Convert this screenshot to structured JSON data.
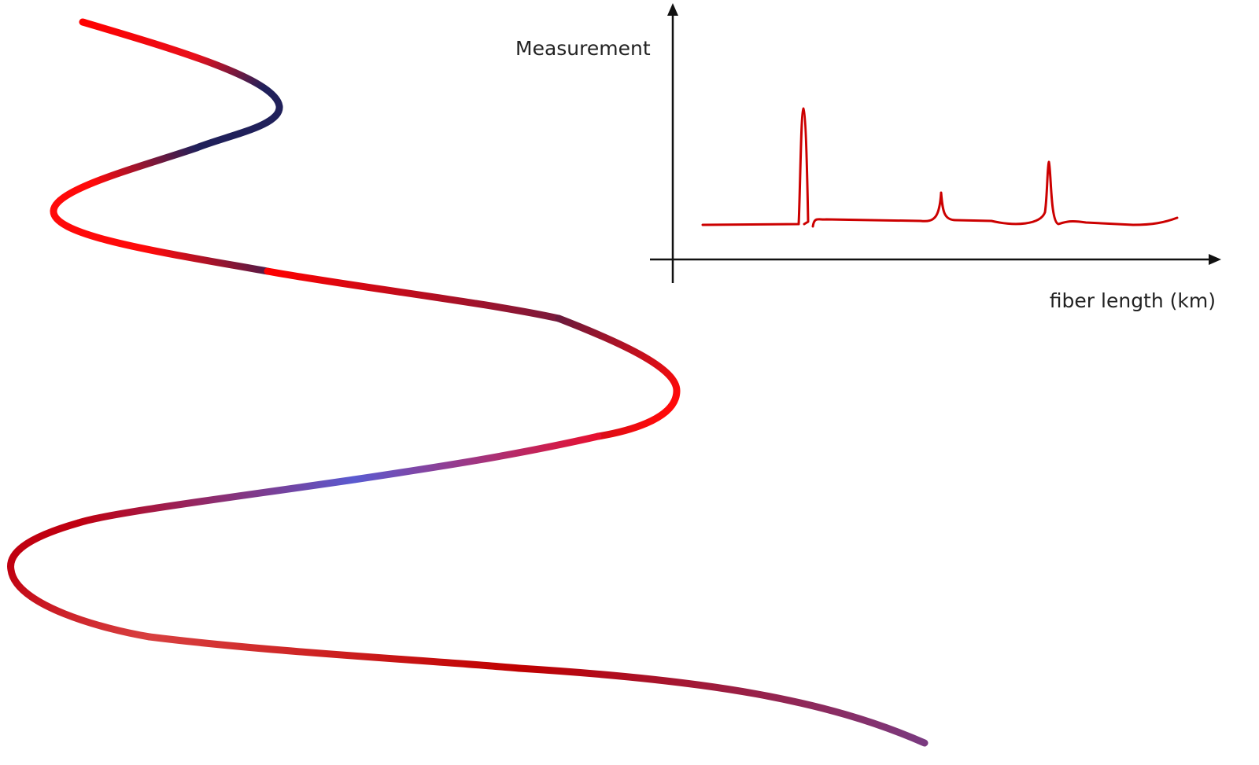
{
  "labels": {
    "y_axis": "Measurement",
    "x_axis": "fiber length (km)"
  }
}
